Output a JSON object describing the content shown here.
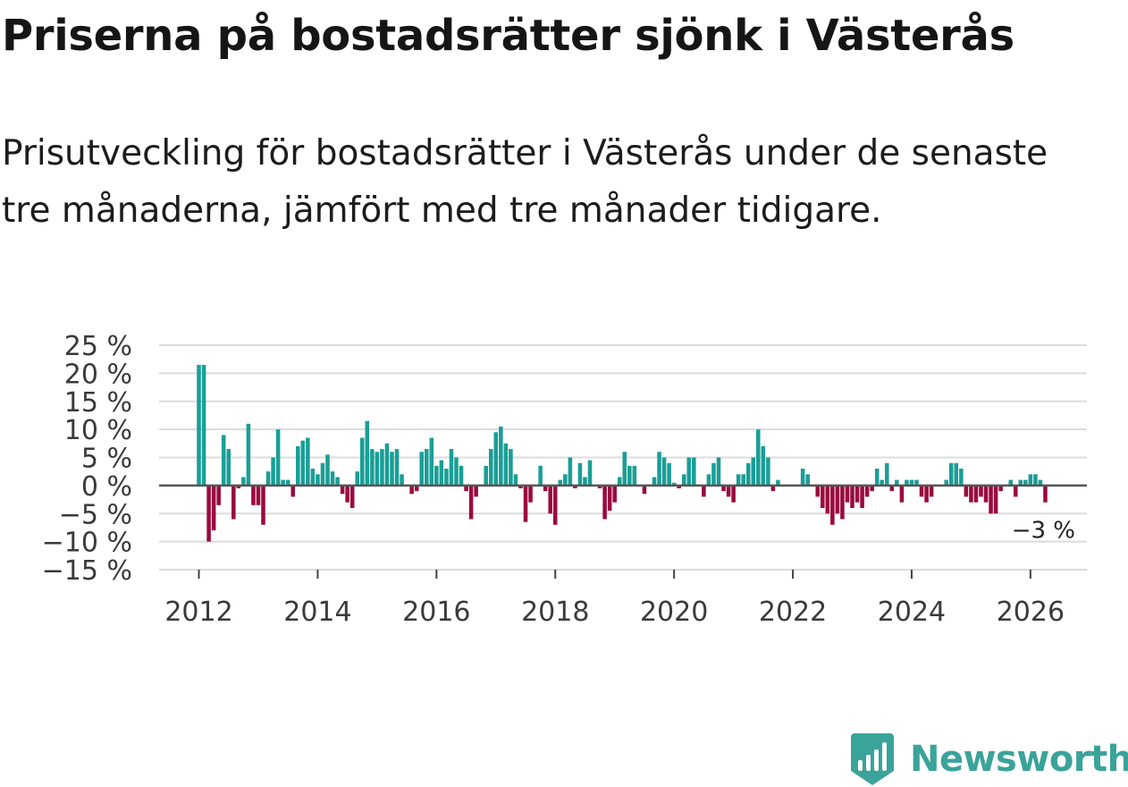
{
  "header": {
    "title": "Priserna på bostadsrätter sjönk i Västerås",
    "subtitle": "Prisutveckling för bostadsrätter i Västerås under de senaste tre månaderna, jämfört med tre månader tidigare."
  },
  "brand": {
    "name": "Newsworthy",
    "icon": "newsworthy-logo-icon",
    "color": "#3aa39a"
  },
  "chart_data": {
    "type": "bar",
    "title": "",
    "xlabel": "",
    "ylabel": "",
    "x_start": "2012-01",
    "frequency": "monthly",
    "xlim": [
      2011.33,
      2026.95
    ],
    "ylim": [
      -15,
      25
    ],
    "yticks": [
      25,
      20,
      15,
      10,
      5,
      0,
      -5,
      -10,
      -15
    ],
    "ytick_labels": [
      "25 %",
      "20 %",
      "15 %",
      "10 %",
      "5 %",
      "0 %",
      "−5 %",
      "−10 %",
      "−15 %"
    ],
    "xticks": [
      2012,
      2014,
      2016,
      2018,
      2020,
      2022,
      2024,
      2026
    ],
    "xtick_labels": [
      "2012",
      "2014",
      "2016",
      "2018",
      "2020",
      "2022",
      "2024",
      "2026"
    ],
    "grid": true,
    "colors": {
      "positive": "#1a9e96",
      "negative": "#9a0a3f"
    },
    "end_label": "−3 %",
    "values": [
      21.5,
      21.5,
      -10,
      -8,
      -3.5,
      9,
      6.5,
      -6,
      -0.5,
      1.5,
      11,
      -3.5,
      -3.5,
      -7,
      2.5,
      5,
      10,
      1,
      1,
      -2,
      7,
      8,
      8.5,
      3,
      2,
      4,
      5.5,
      2.5,
      1.5,
      -1.5,
      -3,
      -4,
      2.5,
      8.5,
      11.5,
      6.5,
      6,
      6.5,
      7.5,
      6,
      6.5,
      2,
      0,
      -1.5,
      -1,
      6,
      6.5,
      8.5,
      3.5,
      4.5,
      3,
      6.5,
      5,
      3.5,
      -1,
      -6,
      -2,
      0,
      3.5,
      6.5,
      9.5,
      10.5,
      7.5,
      6.5,
      2,
      -0.5,
      -6.5,
      -3,
      0,
      3.5,
      -1,
      -5,
      -7,
      1,
      2,
      5,
      -0.5,
      4,
      1.5,
      4.5,
      0,
      -0.5,
      -6,
      -4.5,
      -3,
      1.5,
      6,
      3.5,
      3.5,
      0,
      -1.5,
      0,
      1.5,
      6,
      5,
      4,
      0.5,
      -0.5,
      2,
      5,
      5,
      0,
      -2,
      2,
      4,
      5,
      -1,
      -2,
      -3,
      2,
      2,
      4,
      5,
      10,
      7,
      5,
      -1,
      1,
      0,
      0,
      0,
      0,
      3,
      2,
      0,
      -2,
      -4,
      -5,
      -7,
      -5,
      -6,
      -3,
      -4,
      -3,
      -4,
      -2,
      -1,
      3,
      1,
      4,
      -1,
      1,
      -3,
      1,
      1,
      1,
      -2,
      -3,
      -2,
      0,
      0,
      1,
      4,
      4,
      3,
      -2,
      -3,
      -3,
      -2,
      -3,
      -5,
      -5,
      -1,
      0,
      1,
      -2,
      1,
      1,
      2,
      2,
      1,
      -3
    ]
  }
}
